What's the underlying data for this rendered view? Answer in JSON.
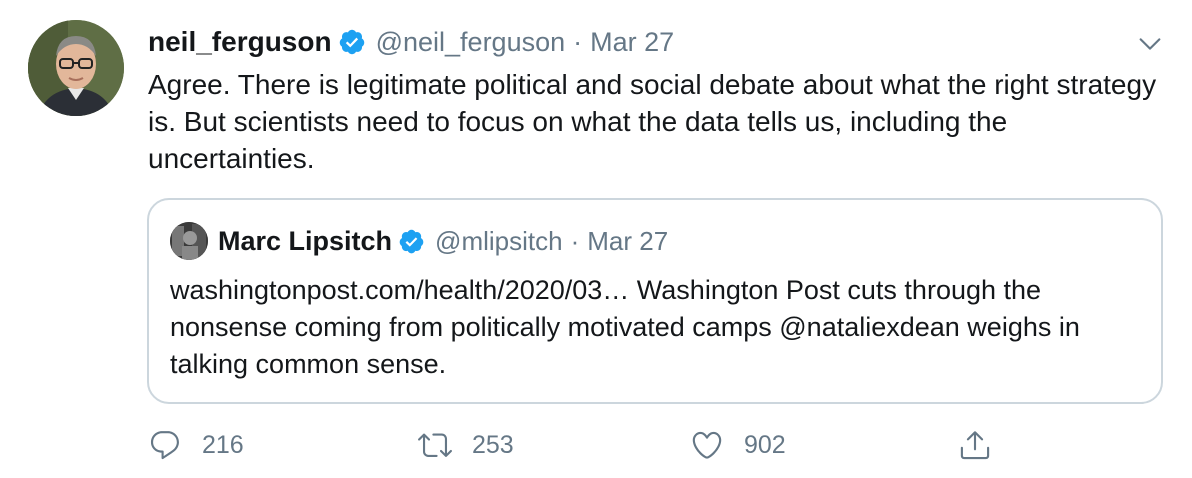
{
  "tweet": {
    "display_name": "neil_ferguson",
    "handle": "@neil_ferguson",
    "separator": "·",
    "date": "Mar 27",
    "text": "Agree. There is legitimate political and social debate about what the right strategy is. But scientists need to focus on what the data tells us, including the uncertainties.",
    "avatar_icon": "profile-photo"
  },
  "quoted_tweet": {
    "display_name": "Marc Lipsitch",
    "handle": "@mlipsitch",
    "separator": "·",
    "date": "Mar 27",
    "text": "washingtonpost.com/health/2020/03… Washington Post cuts through the nonsense coming from politically motivated camps @nataliexdean weighs in talking common sense."
  },
  "actions": {
    "reply_count": "216",
    "retweet_count": "253",
    "like_count": "902"
  },
  "colors": {
    "verified": "#1da1f2",
    "secondary_text": "#657786",
    "border": "#ccd6dd",
    "primary_text": "#14171a"
  }
}
